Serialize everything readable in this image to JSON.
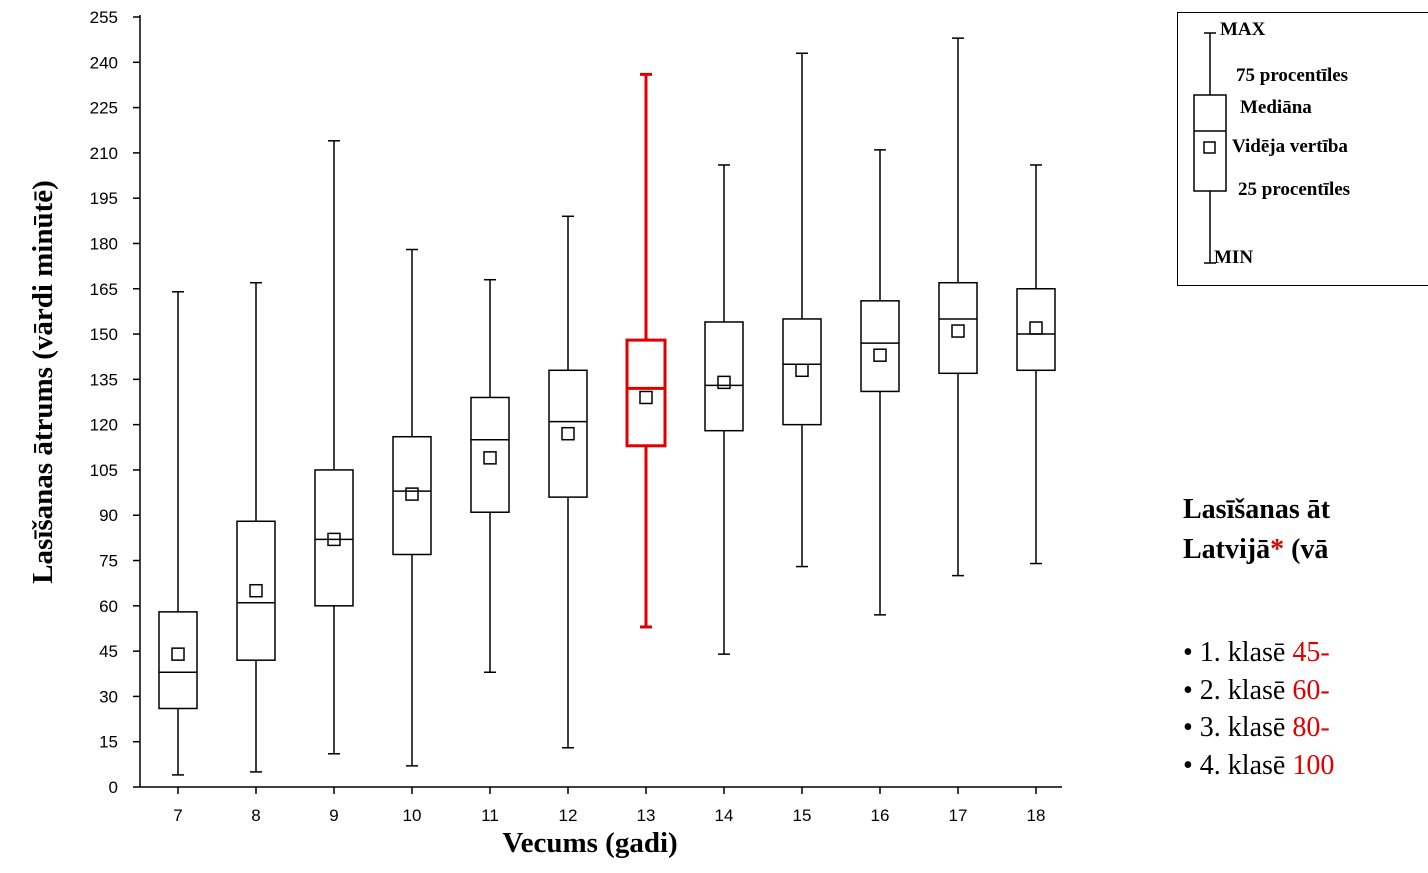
{
  "chart_data": {
    "type": "boxplot",
    "xlabel": "Vecums (gadi)",
    "ylabel": "Lasīšanas ātrums (vārdi minūtē)",
    "ylim": [
      0,
      255
    ],
    "yticks": [
      0,
      15,
      30,
      45,
      60,
      75,
      90,
      105,
      120,
      135,
      150,
      165,
      180,
      195,
      210,
      225,
      240,
      255
    ],
    "categories": [
      "7",
      "8",
      "9",
      "10",
      "11",
      "12",
      "13",
      "14",
      "15",
      "16",
      "17",
      "18"
    ],
    "box_color": "#000000",
    "highlight_color": "#e00000",
    "highlight_category": "13",
    "boxes": [
      {
        "x": "7",
        "min": 4,
        "q1": 26,
        "median": 38,
        "q3": 58,
        "max": 164,
        "mean": 44
      },
      {
        "x": "8",
        "min": 5,
        "q1": 42,
        "median": 61,
        "q3": 88,
        "max": 167,
        "mean": 65
      },
      {
        "x": "9",
        "min": 11,
        "q1": 60,
        "median": 82,
        "q3": 105,
        "max": 214,
        "mean": 82
      },
      {
        "x": "10",
        "min": 7,
        "q1": 77,
        "median": 98,
        "q3": 116,
        "max": 178,
        "mean": 97
      },
      {
        "x": "11",
        "min": 38,
        "q1": 91,
        "median": 115,
        "q3": 129,
        "max": 168,
        "mean": 109
      },
      {
        "x": "12",
        "min": 13,
        "q1": 96,
        "median": 121,
        "q3": 138,
        "max": 189,
        "mean": 117
      },
      {
        "x": "13",
        "min": 53,
        "q1": 113,
        "median": 132,
        "q3": 148,
        "max": 236,
        "mean": 129
      },
      {
        "x": "14",
        "min": 44,
        "q1": 118,
        "median": 133,
        "q3": 154,
        "max": 206,
        "mean": 134
      },
      {
        "x": "15",
        "min": 73,
        "q1": 120,
        "median": 140,
        "q3": 155,
        "max": 243,
        "mean": 138
      },
      {
        "x": "16",
        "min": 57,
        "q1": 131,
        "median": 147,
        "q3": 161,
        "max": 211,
        "mean": 143
      },
      {
        "x": "17",
        "min": 70,
        "q1": 137,
        "median": 155,
        "q3": 167,
        "max": 248,
        "mean": 151
      },
      {
        "x": "18",
        "min": 74,
        "q1": 138,
        "median": 150,
        "q3": 165,
        "max": 206,
        "mean": 152
      }
    ]
  },
  "legend": {
    "max": "MAX",
    "p75": "75 procentīles",
    "median": "Mediāna",
    "mean": "Vidēja vertība",
    "p25": "25 procentīles",
    "min": "MIN"
  },
  "side_panel": {
    "title_line1": "Lasīšanas āt",
    "title_line2_prefix": "Latvijā",
    "title_line2_star": "*",
    "title_line2_suffix": " (vā",
    "grades": [
      {
        "label": "• 1. klasē ",
        "range": "45-"
      },
      {
        "label": "• 2. klasē ",
        "range": "60-"
      },
      {
        "label": "• 3. klasē ",
        "range": "80-"
      },
      {
        "label": "• 4. klasē ",
        "range": "100"
      }
    ]
  }
}
